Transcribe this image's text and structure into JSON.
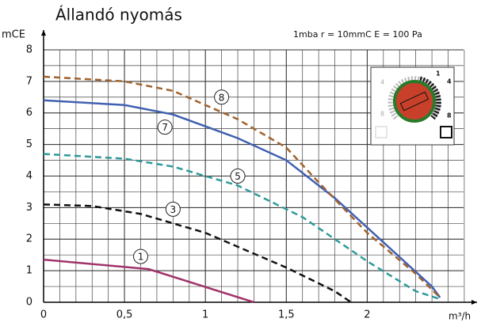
{
  "chart_data": {
    "type": "line",
    "title": "Állandó nyomás",
    "y_label": "mCE",
    "x_label": "m³/h",
    "note": "1mba r = 10mmC E = 100 Pa",
    "xlim": [
      0,
      2.62
    ],
    "ylim": [
      0,
      8.4
    ],
    "xticks": [
      0,
      {
        "value": 0.5,
        "label": "0,5"
      },
      1,
      {
        "value": 1.5,
        "label": "1,5"
      },
      2
    ],
    "yticks": [
      0,
      1,
      2,
      3,
      4,
      5,
      6,
      7,
      8
    ],
    "grid": true,
    "series": [
      {
        "name": "1",
        "color": "#a0336b",
        "dashed": false,
        "x": [
          0,
          0.65,
          1.3
        ],
        "values": [
          1.35,
          1.05,
          0
        ]
      },
      {
        "name": "3",
        "color": "#111111",
        "dashed": true,
        "x": [
          0,
          0.3,
          0.6,
          1.0,
          1.5,
          1.8,
          1.9
        ],
        "values": [
          3.1,
          3.05,
          2.8,
          2.2,
          1.1,
          0.35,
          0
        ]
      },
      {
        "name": "5",
        "color": "#2e9a9a",
        "dashed": true,
        "x": [
          0,
          0.5,
          0.8,
          1.2,
          1.6,
          2.0,
          2.3,
          2.45
        ],
        "values": [
          4.7,
          4.55,
          4.3,
          3.7,
          2.7,
          1.3,
          0.35,
          0.1
        ]
      },
      {
        "name": "7",
        "color": "#4060b0",
        "dashed": false,
        "x": [
          0,
          0.5,
          0.8,
          1.2,
          1.5,
          1.8,
          2.1,
          2.4,
          2.45
        ],
        "values": [
          6.4,
          6.25,
          5.95,
          5.2,
          4.5,
          3.3,
          1.9,
          0.5,
          0.15
        ]
      },
      {
        "name": "8",
        "color": "#a0622d",
        "dashed": true,
        "x": [
          0,
          0.5,
          0.8,
          1.2,
          1.5,
          1.7,
          2.0,
          2.3,
          2.45
        ],
        "values": [
          7.15,
          7.0,
          6.7,
          5.8,
          4.9,
          3.8,
          2.2,
          0.9,
          0.15
        ]
      }
    ],
    "inset_labels": [
      "1",
      "4",
      "8",
      "4",
      "8"
    ]
  }
}
